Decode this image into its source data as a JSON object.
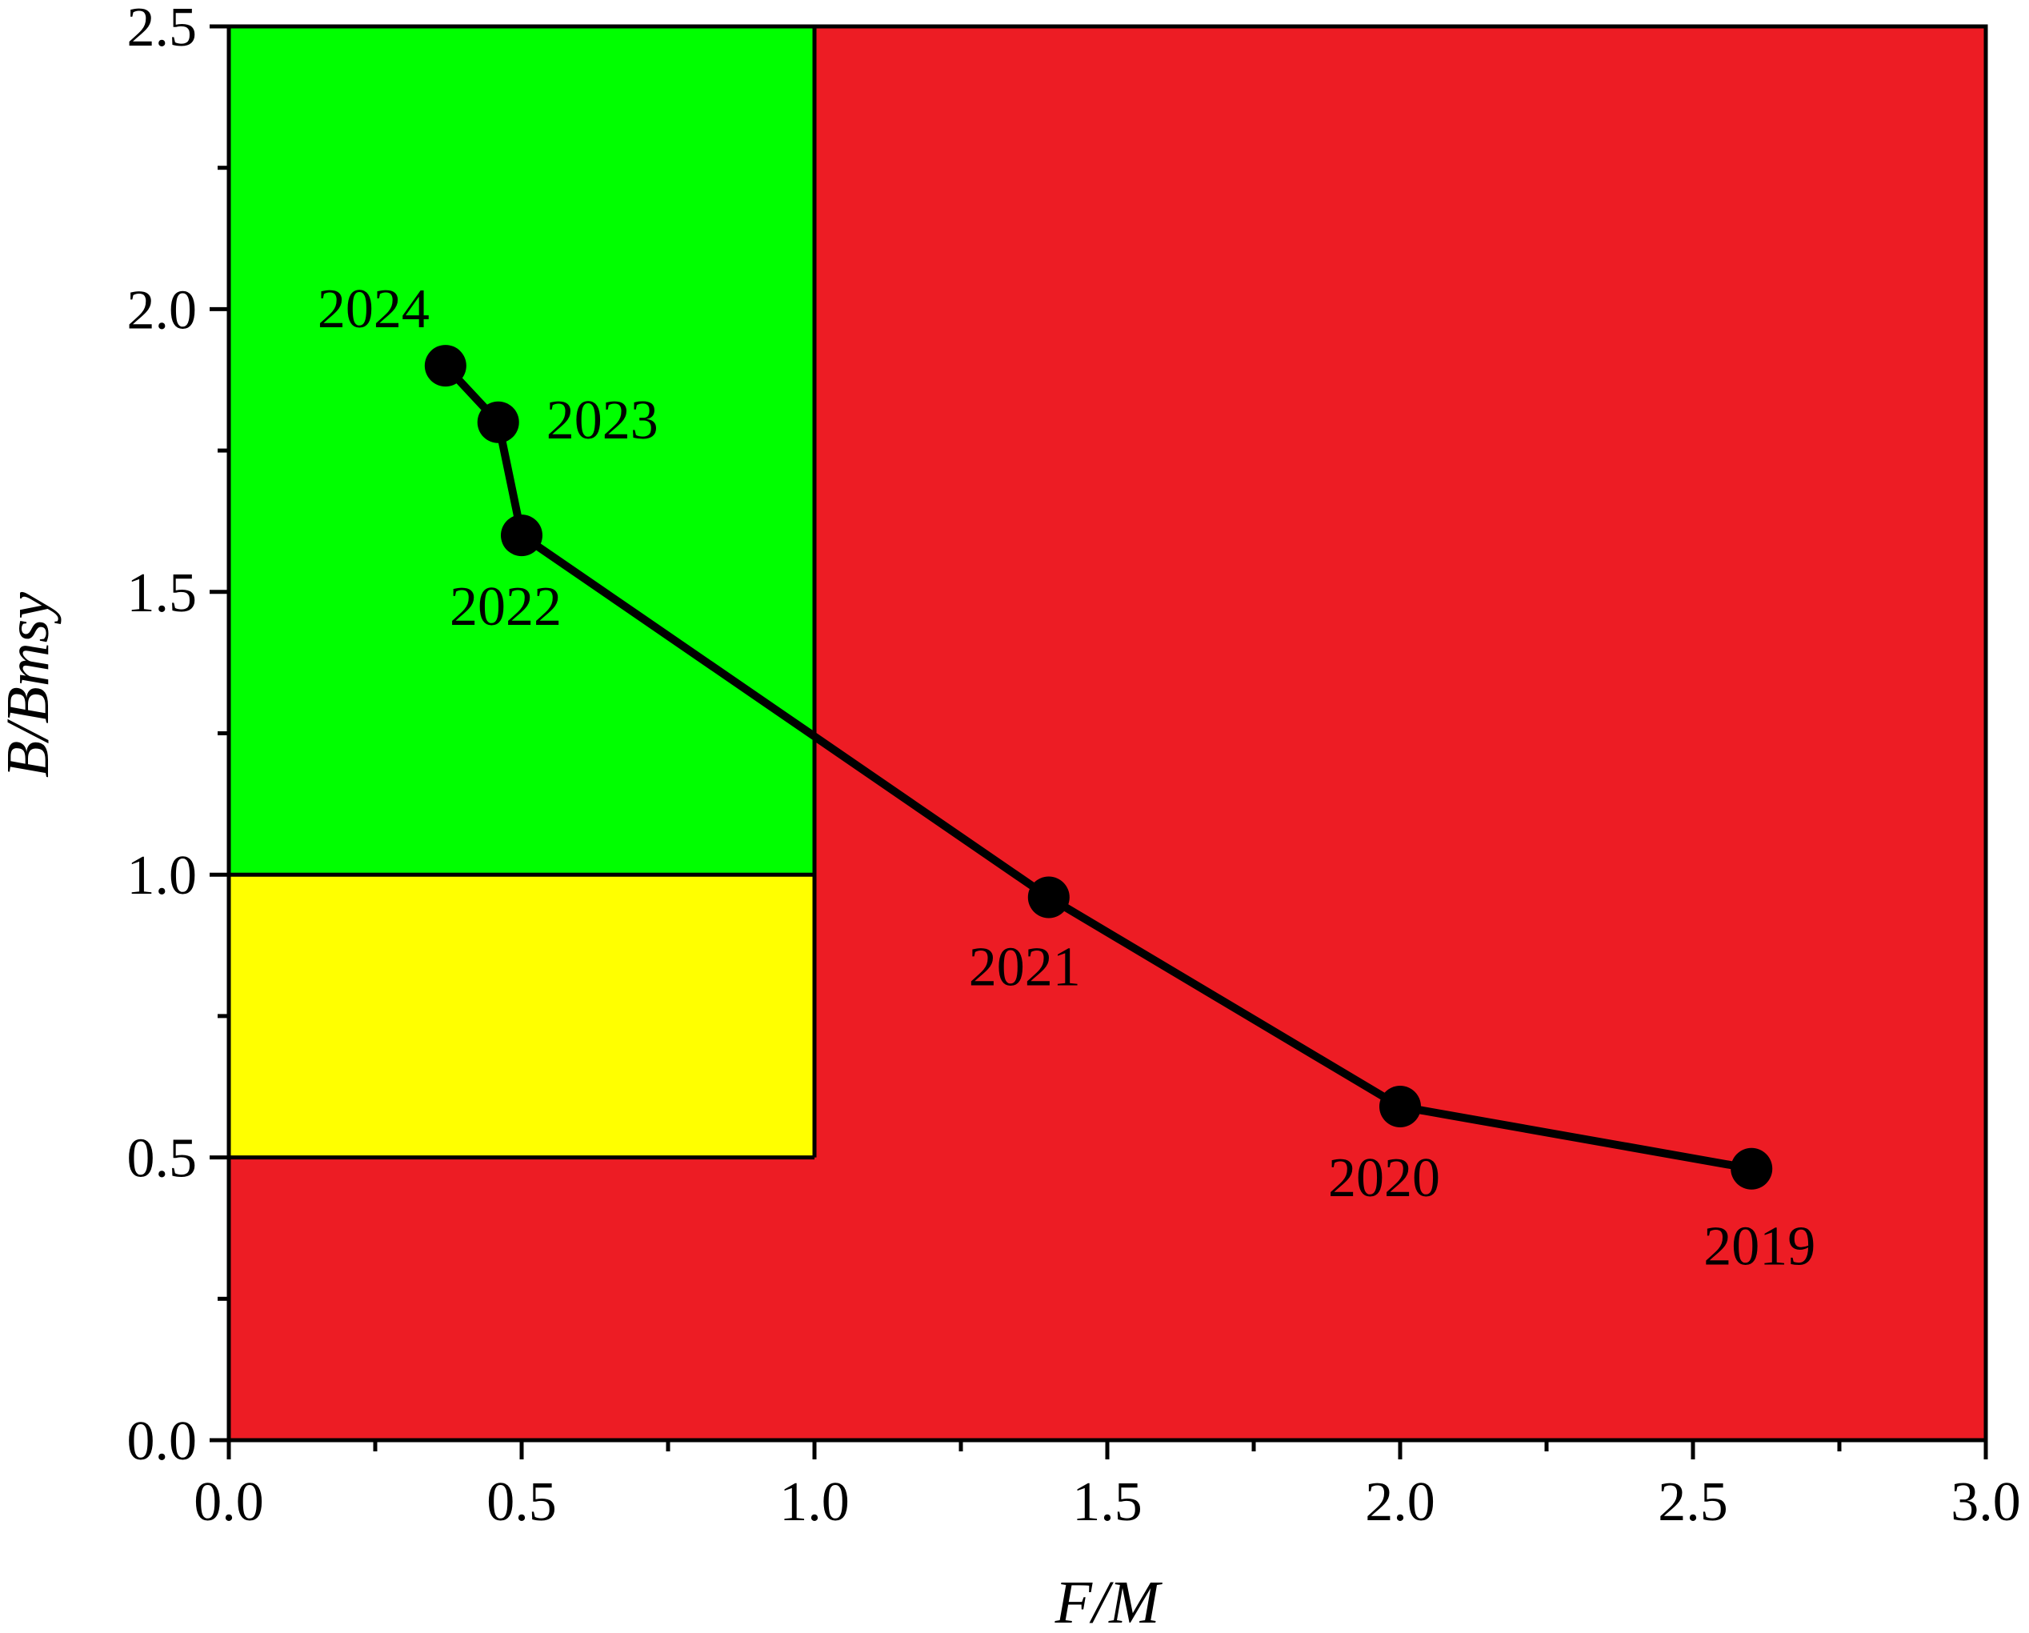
{
  "chart_data": {
    "type": "scatter",
    "mode": "line+markers",
    "xlabel": "F/M",
    "ylabel": "B/Bmsy",
    "xlim": [
      0.0,
      3.0
    ],
    "ylim": [
      0.0,
      2.5
    ],
    "x_ticks": [
      "0.0",
      "0.5",
      "1.0",
      "1.5",
      "2.0",
      "2.5",
      "3.0"
    ],
    "y_ticks": [
      "0.0",
      "0.5",
      "1.0",
      "1.5",
      "2.0",
      "2.5"
    ],
    "grid": false,
    "zones": [
      {
        "color": "#ed1c24",
        "x": [
          0.0,
          3.0
        ],
        "y": [
          0.0,
          2.5
        ]
      },
      {
        "color": "#00ff00",
        "x": [
          0.0,
          1.0
        ],
        "y": [
          1.0,
          2.5
        ]
      },
      {
        "color": "#ffff00",
        "x": [
          0.0,
          1.0
        ],
        "y": [
          0.5,
          1.0
        ]
      }
    ],
    "points": [
      {
        "year": "2019",
        "x": 2.6,
        "y": 0.48
      },
      {
        "year": "2020",
        "x": 2.0,
        "y": 0.59
      },
      {
        "year": "2021",
        "x": 1.4,
        "y": 0.96
      },
      {
        "year": "2022",
        "x": 0.5,
        "y": 1.6
      },
      {
        "year": "2023",
        "x": 0.46,
        "y": 1.8
      },
      {
        "year": "2024",
        "x": 0.37,
        "y": 1.9
      }
    ],
    "colors": {
      "line": "#000000",
      "marker": "#000000"
    }
  }
}
